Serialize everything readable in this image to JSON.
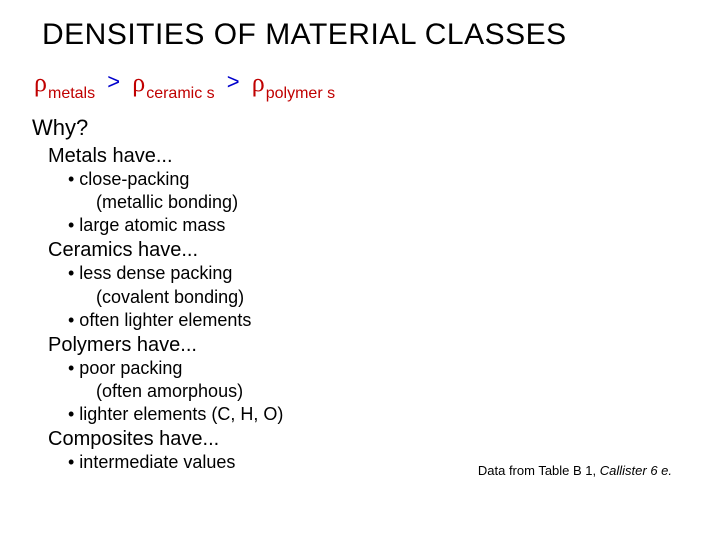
{
  "title": "DENSITIES OF MATERIAL CLASSES",
  "inequality": {
    "rho": "ρ",
    "sub_metals": "metals",
    "gt1": ">",
    "sub_ceramics": "ceramic s",
    "gt2": ">",
    "sub_polymers": "polymer s",
    "colors": {
      "red": "#c00000",
      "blue": "#0000cc"
    }
  },
  "why": "Why?",
  "groups": [
    {
      "head": "Metals have...",
      "bullets": [
        "• close-packing",
        "   (metallic bonding)",
        "• large atomic mass"
      ]
    },
    {
      "head": "Ceramics have...",
      "bullets": [
        "• less dense packing",
        "   (covalent bonding)",
        "• often lighter elements"
      ]
    },
    {
      "head": "Polymers have...",
      "bullets": [
        "• poor packing",
        "   (often amorphous)",
        "• lighter elements (C, H, O)"
      ]
    },
    {
      "head": "Composites have...",
      "bullets": [
        "• intermediate values"
      ]
    }
  ],
  "citation_prefix": "Data from Table B 1, ",
  "citation_source": "Callister 6 e."
}
